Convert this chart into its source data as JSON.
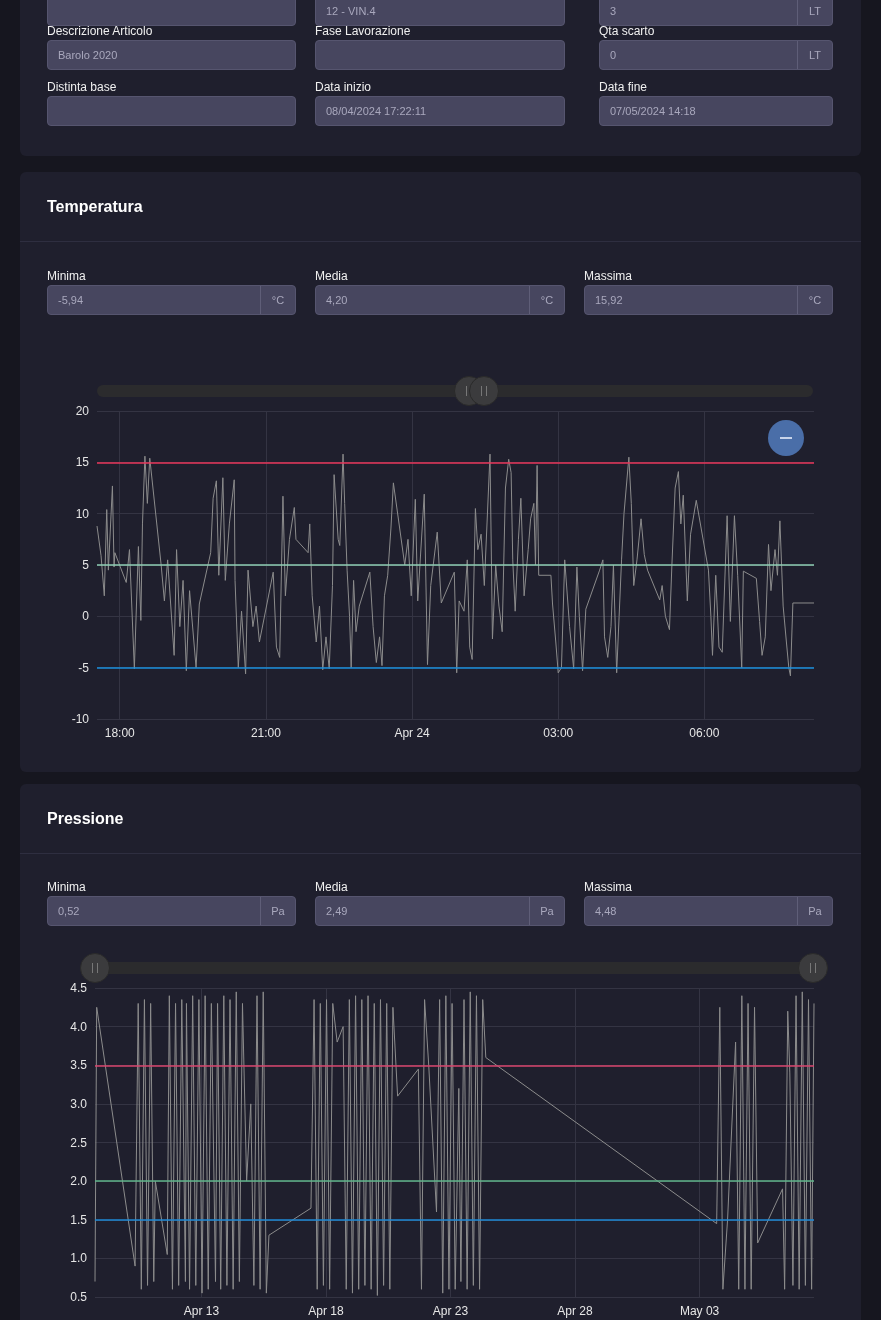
{
  "chart_data": [
    {
      "type": "other",
      "annotations": [
        "12 - VIN.4",
        "3",
        "LT",
        "Descrizione Articolo",
        "Barolo 2020",
        "Fase Lavorazione",
        "Qta scarto",
        "0",
        "LT",
        "Distinta base",
        "Data inizio",
        "08/04/2024 17:22:11",
        "Data fine",
        "07/05/2024 14:18"
      ]
    },
    {
      "type": "line",
      "title": "Temperatura",
      "annotations": [
        "Minima",
        "-5,94",
        "°C",
        "Media",
        "4,20",
        "°C",
        "Massima",
        "15,92",
        "°C"
      ],
      "color": "#8c8c8c",
      "marker": "none",
      "grid": true,
      "x": [
        "2024-04-23T17:32",
        "2024-04-23T17:37",
        "2024-04-23T17:41",
        "2024-04-23T17:44",
        "2024-04-23T17:46",
        "2024-04-23T17:51",
        "2024-04-23T17:53",
        "2024-04-23T17:54",
        "2024-04-23T18:08",
        "2024-04-23T18:12",
        "2024-04-23T18:18",
        "2024-04-23T18:23",
        "2024-04-23T18:26",
        "2024-04-23T18:28",
        "2024-04-23T18:31",
        "2024-04-23T18:34",
        "2024-04-23T18:37",
        "2024-04-23T18:51",
        "2024-04-23T18:55",
        "2024-04-23T18:59",
        "2024-04-23T19:07",
        "2024-04-23T19:10",
        "2024-04-23T19:14",
        "2024-04-23T19:18",
        "2024-04-23T19:22",
        "2024-04-23T19:26",
        "2024-04-23T19:34",
        "2024-04-23T19:38",
        "2024-04-23T19:52",
        "2024-04-23T19:55",
        "2024-04-23T19:59",
        "2024-04-23T20:02",
        "2024-04-23T20:07",
        "2024-04-23T20:10",
        "2024-04-23T20:15",
        "2024-04-23T20:21",
        "2024-04-23T20:22",
        "2024-04-23T20:26",
        "2024-04-23T20:30",
        "2024-04-23T20:35",
        "2024-04-23T20:38",
        "2024-04-23T20:44",
        "2024-04-23T20:48",
        "2024-04-23T20:52",
        "2024-04-23T21:09",
        "2024-04-23T21:13",
        "2024-04-23T21:17",
        "2024-04-23T21:21",
        "2024-04-23T21:24",
        "2024-04-23T21:29",
        "2024-04-23T21:35",
        "2024-04-23T21:37",
        "2024-04-23T21:52",
        "2024-04-23T21:54",
        "2024-04-23T21:57",
        "2024-04-23T22:02",
        "2024-04-23T22:06",
        "2024-04-23T22:10",
        "2024-04-23T22:14",
        "2024-04-23T22:18",
        "2024-04-23T22:22",
        "2024-04-23T22:24",
        "2024-04-23T22:29",
        "2024-04-23T22:31",
        "2024-04-23T22:35",
        "2024-04-23T22:37",
        "2024-04-23T22:40",
        "2024-04-23T22:43",
        "2024-04-23T22:45",
        "2024-04-23T22:48",
        "2024-04-23T22:51",
        "2024-04-23T22:55",
        "2024-04-23T23:08",
        "2024-04-23T23:12",
        "2024-04-23T23:16",
        "2024-04-23T23:20",
        "2024-04-23T23:23",
        "2024-04-23T23:26",
        "2024-04-23T23:30",
        "2024-04-23T23:34",
        "2024-04-23T23:37",
        "2024-04-23T23:51",
        "2024-04-23T23:55",
        "2024-04-23T23:59",
        "2024-04-24T00:04",
        "2024-04-24T00:07",
        "2024-04-24T00:15",
        "2024-04-24T00:19",
        "2024-04-24T00:23",
        "2024-04-24T00:31",
        "2024-04-24T00:36",
        "2024-04-24T00:52",
        "2024-04-24T00:55",
        "2024-04-24T00:58",
        "2024-04-24T01:04",
        "2024-04-24T01:08",
        "2024-04-24T01:11",
        "2024-04-24T01:14",
        "2024-04-24T01:18",
        "2024-04-24T01:21",
        "2024-04-24T01:25",
        "2024-04-24T01:29",
        "2024-04-24T01:36",
        "2024-04-24T01:39",
        "2024-04-24T01:43",
        "2024-04-24T01:47",
        "2024-04-24T01:51",
        "2024-04-24T01:55",
        "2024-04-24T01:59",
        "2024-04-24T02:02",
        "2024-04-24T02:04",
        "2024-04-24T02:07",
        "2024-04-24T02:11",
        "2024-04-24T02:14",
        "2024-04-24T02:18",
        "2024-04-24T02:23",
        "2024-04-24T02:26",
        "2024-04-24T02:30",
        "2024-04-24T02:32",
        "2024-04-24T02:34",
        "2024-04-24T02:36",
        "2024-04-24T02:51",
        "2024-04-24T02:53",
        "2024-04-24T02:57",
        "2024-04-24T03:00",
        "2024-04-24T03:04",
        "2024-04-24T03:08",
        "2024-04-24T03:14",
        "2024-04-24T03:19",
        "2024-04-24T03:23",
        "2024-04-24T03:26",
        "2024-04-24T03:30",
        "2024-04-24T03:34",
        "2024-04-24T03:51",
        "2024-04-24T03:55",
        "2024-04-24T03:57",
        "2024-04-24T04:01",
        "2024-04-24T04:05",
        "2024-04-24T04:08",
        "2024-04-24T04:12",
        "2024-04-24T04:15",
        "2024-04-24T04:18",
        "2024-04-24T04:21",
        "2024-04-24T04:27",
        "2024-04-24T04:30",
        "2024-04-24T04:33",
        "2024-04-24T04:37",
        "2024-04-24T04:42",
        "2024-04-24T04:46",
        "2024-04-24T04:50",
        "2024-04-24T05:05",
        "2024-04-24T05:08",
        "2024-04-24T05:12",
        "2024-04-24T05:17",
        "2024-04-24T05:20",
        "2024-04-24T05:24",
        "2024-04-24T05:28",
        "2024-04-24T05:31",
        "2024-04-24T05:34",
        "2024-04-24T05:39",
        "2024-04-24T05:43",
        "2024-04-24T05:50",
        "2024-04-24T06:05",
        "2024-04-24T06:08",
        "2024-04-24T06:10",
        "2024-04-24T06:14",
        "2024-04-24T06:18",
        "2024-04-24T06:22",
        "2024-04-24T06:28",
        "2024-04-24T06:32",
        "2024-04-24T06:37",
        "2024-04-24T06:41",
        "2024-04-24T06:46",
        "2024-04-24T06:48",
        "2024-04-24T07:04",
        "2024-04-24T07:08",
        "2024-04-24T07:11",
        "2024-04-24T07:15",
        "2024-04-24T07:19",
        "2024-04-24T07:22",
        "2024-04-24T07:27",
        "2024-04-24T07:30",
        "2024-04-24T07:33",
        "2024-04-24T07:37",
        "2024-04-24T07:41",
        "2024-04-24T07:44",
        "2024-04-24T07:46",
        "2024-04-24T07:49",
        "2024-04-24T08:15"
      ],
      "values": [
        8.8,
        5.9,
        2.0,
        10.4,
        4.5,
        12.7,
        4.8,
        6.2,
        3.3,
        6.5,
        -5.1,
        6.8,
        -0.4,
        9,
        15.6,
        11,
        15.4,
        5,
        1.5,
        5.5,
        -3.8,
        6.5,
        -1,
        3.5,
        -5.3,
        2.5,
        -5.0,
        1.2,
        6.2,
        11.5,
        13.2,
        4.0,
        13.5,
        3.5,
        9,
        13.3,
        3.5,
        -5.0,
        0.5,
        -5.6,
        4.5,
        -1,
        1.0,
        -2.5,
        4.3,
        -3,
        -4,
        11.7,
        2,
        7.5,
        10.6,
        7.5,
        6.2,
        9.0,
        2,
        -2.5,
        1,
        -5.2,
        -2,
        -5.1,
        3,
        13.8,
        7.5,
        6.9,
        15.8,
        11,
        4.5,
        0,
        -5.0,
        3.5,
        -1.5,
        1,
        4.3,
        -1,
        -4.5,
        -2,
        -4.8,
        2,
        4,
        8.6,
        13.0,
        5,
        7.5,
        2,
        11.4,
        1.5,
        11.9,
        -4.7,
        3,
        8.2,
        1.3,
        4.3,
        -5.5,
        1.5,
        0.5,
        5.5,
        -3,
        -4.2,
        10.5,
        6.5,
        8,
        3,
        15.8,
        -2.2,
        5,
        1.0,
        -1.5,
        12.5,
        15.3,
        14,
        5.5,
        0.5,
        7.5,
        11.5,
        2,
        6.5,
        9.5,
        11,
        5,
        14.7,
        4,
        4,
        1.2,
        -2.5,
        -5.5,
        -5,
        5.5,
        -1,
        -5.1,
        4.8,
        0,
        -5.3,
        0.7,
        4.5,
        5.5,
        -2,
        -4,
        -1,
        5,
        -5.5,
        0,
        5.5,
        10,
        15.5,
        11,
        3,
        5.5,
        9.5,
        6,
        4.5,
        1.6,
        3,
        0,
        -1.3,
        5,
        12.5,
        14.1,
        9,
        11.8,
        1.5,
        8,
        11.3,
        4.5,
        0,
        -3.8,
        4,
        -3,
        -3.5,
        9.8,
        -0.5,
        9.8,
        4,
        -5,
        4.4,
        3.7,
        -0.5,
        -3.8,
        -2,
        7,
        2.5,
        6.5,
        4,
        9.3,
        1,
        -2.5,
        -5,
        -5.8,
        1.3,
        1.3
      ],
      "xlim": [
        "2024-04-23T17:32",
        "2024-04-24T08:15"
      ],
      "xticks": [
        {
          "value": "2024-04-23T18:00",
          "label": "18:00"
        },
        {
          "value": "2024-04-23T21:00",
          "label": "21:00"
        },
        {
          "value": "2024-04-24T00:00",
          "label": "Apr 24"
        },
        {
          "value": "2024-04-24T03:00",
          "label": "03:00"
        },
        {
          "value": "2024-04-24T06:00",
          "label": "06:00"
        }
      ],
      "ylim": [
        -10,
        20
      ],
      "yticks": [
        -10,
        -5,
        0,
        5,
        10,
        15,
        20
      ],
      "ref_lines": [
        {
          "axis": "y",
          "value": 15,
          "color": "#e8365a"
        },
        {
          "axis": "y",
          "value": 5,
          "color": "#8fcfb5"
        },
        {
          "axis": "y",
          "value": -5,
          "color": "#1a8fdc"
        }
      ]
    },
    {
      "type": "line",
      "title": "Pressione",
      "annotations": [
        "Minima",
        "0,52",
        "Pa",
        "Media",
        "2,49",
        "Pa",
        "Massima",
        "4,48",
        "Pa"
      ],
      "color": "#8c8c8c",
      "marker": "none",
      "grid": true,
      "x": [
        "2024-04-08T17:22",
        "2024-04-08T19:00",
        "2024-04-10T08:00",
        "2024-04-10T11:00",
        "2024-04-10T14:00",
        "2024-04-10T17:00",
        "2024-04-10T20:00",
        "2024-04-10T23:00",
        "2024-04-11T02:00",
        "2024-04-11T03:30",
        "2024-04-11T15:00",
        "2024-04-11T17:00",
        "2024-04-11T20:00",
        "2024-04-11T23:00",
        "2024-04-12T02:00",
        "2024-04-12T05:00",
        "2024-04-12T08:30",
        "2024-04-12T09:30",
        "2024-04-12T12:30",
        "2024-04-12T15:30",
        "2024-04-12T18:30",
        "2024-04-12T21:30",
        "2024-04-13T00:30",
        "2024-04-13T03:30",
        "2024-04-13T06:30",
        "2024-04-13T09:30",
        "2024-04-13T13:30",
        "2024-04-13T15:30",
        "2024-04-13T18:30",
        "2024-04-13T21:30",
        "2024-04-14T00:30",
        "2024-04-14T03:30",
        "2024-04-14T06:30",
        "2024-04-14T09:30",
        "2024-04-14T12:30",
        "2024-04-14T15:30",
        "2024-04-14T19:30",
        "2024-04-14T23:30",
        "2024-04-15T02:30",
        "2024-04-15T05:30",
        "2024-04-15T08:30",
        "2024-04-15T11:30",
        "2024-04-15T14:30",
        "2024-04-15T17:00",
        "2024-04-17T09:30",
        "2024-04-17T12:30",
        "2024-04-17T15:30",
        "2024-04-17T18:30",
        "2024-04-17T21:30",
        "2024-04-18T00:30",
        "2024-04-18T03:30",
        "2024-04-18T06:30",
        "2024-04-18T10:45",
        "2024-04-18T16:30",
        "2024-04-18T19:30",
        "2024-04-18T22:30",
        "2024-04-19T01:30",
        "2024-04-19T04:30",
        "2024-04-19T07:30",
        "2024-04-19T10:30",
        "2024-04-19T13:30",
        "2024-04-19T16:30",
        "2024-04-19T19:30",
        "2024-04-19T22:30",
        "2024-04-20T01:30",
        "2024-04-20T04:30",
        "2024-04-20T07:30",
        "2024-04-20T10:30",
        "2024-04-20T13:30",
        "2024-04-20T16:30",
        "2024-04-20T21:00",
        "2024-04-21T17:00",
        "2024-04-21T20:00",
        "2024-04-21T23:00",
        "2024-04-22T03:00",
        "2024-04-22T10:30",
        "2024-04-22T13:30",
        "2024-04-22T16:30",
        "2024-04-22T19:30",
        "2024-04-22T22:30",
        "2024-04-23T01:30",
        "2024-04-23T04:30",
        "2024-04-23T08:00",
        "2024-04-23T10:00",
        "2024-04-23T13:00",
        "2024-04-23T16:00",
        "2024-04-23T19:00",
        "2024-04-23T22:00",
        "2024-04-24T01:00",
        "2024-04-24T04:00",
        "2024-04-24T07:00",
        "2024-04-24T10:00",
        "2024-05-03T16:30",
        "2024-05-03T19:30",
        "2024-05-03T22:30",
        "2024-05-04T03:00",
        "2024-05-04T10:45",
        "2024-05-04T13:45",
        "2024-05-04T16:45",
        "2024-05-04T19:45",
        "2024-05-04T22:45",
        "2024-05-05T01:45",
        "2024-05-05T05:00",
        "2024-05-05T08:00",
        "2024-05-06T08:00",
        "2024-05-06T10:00",
        "2024-05-06T13:00",
        "2024-05-06T15:00",
        "2024-05-06T18:00",
        "2024-05-06T21:00",
        "2024-05-07T00:00",
        "2024-05-07T03:00",
        "2024-05-07T06:00",
        "2024-05-07T09:00",
        "2024-05-07T12:00",
        "2024-05-07T14:18"
      ],
      "values": [
        0.7,
        4.25,
        0.9,
        4.3,
        0.6,
        4.35,
        0.65,
        4.3,
        0.7,
        2.0,
        1.05,
        4.4,
        0.6,
        4.3,
        0.65,
        4.35,
        0.7,
        4.3,
        0.6,
        4.4,
        0.65,
        4.35,
        0.55,
        4.4,
        0.6,
        4.3,
        0.7,
        4.3,
        0.6,
        4.4,
        0.65,
        4.35,
        0.6,
        4.45,
        0.7,
        4.3,
        2.0,
        3.0,
        0.65,
        4.4,
        0.6,
        4.45,
        0.55,
        1.3,
        1.65,
        4.35,
        0.6,
        4.3,
        0.65,
        4.35,
        0.6,
        4.3,
        3.8,
        4.0,
        0.6,
        4.35,
        0.55,
        4.4,
        0.6,
        4.35,
        0.65,
        4.4,
        0.6,
        4.3,
        0.52,
        4.35,
        0.65,
        4.3,
        0.6,
        4.25,
        3.1,
        3.45,
        0.6,
        4.35,
        3.5,
        1.6,
        4.35,
        0.55,
        4.4,
        0.6,
        4.3,
        0.6,
        3.2,
        0.7,
        4.35,
        0.6,
        4.45,
        0.65,
        4.4,
        0.6,
        4.35,
        3.6,
        1.45,
        4.25,
        0.6,
        1.5,
        3.8,
        0.6,
        4.4,
        0.6,
        4.3,
        0.6,
        4.25,
        1.2,
        1.9,
        0.6,
        4.2,
        3.4,
        0.65,
        4.4,
        0.6,
        4.45,
        0.65,
        4.35,
        0.6,
        4.3
      ],
      "xlim": [
        "2024-04-08T17:22",
        "2024-05-07T14:18"
      ],
      "xticks": [
        {
          "value": "2024-04-13",
          "label": "Apr 13"
        },
        {
          "value": "2024-04-18",
          "label": "Apr 18"
        },
        {
          "value": "2024-04-23",
          "label": "Apr 23"
        },
        {
          "value": "2024-04-28",
          "label": "Apr 28"
        },
        {
          "value": "2024-05-03",
          "label": "May 03"
        }
      ],
      "ylim": [
        0.5,
        4.5
      ],
      "yticks": [
        0.5,
        {
          "value": 1,
          "label": "1.0"
        },
        1.5,
        {
          "value": 2,
          "label": "2.0"
        },
        2.5,
        {
          "value": 3,
          "label": "3.0"
        },
        3.5,
        {
          "value": 4,
          "label": "4.0"
        },
        4.5
      ],
      "ref_lines": [
        {
          "axis": "y",
          "value": 3.5,
          "color": "#d9456c"
        },
        {
          "axis": "y",
          "value": 2,
          "color": "#5fb58a"
        },
        {
          "axis": "y",
          "value": 1.5,
          "color": "#1e8ad6"
        }
      ]
    }
  ]
}
